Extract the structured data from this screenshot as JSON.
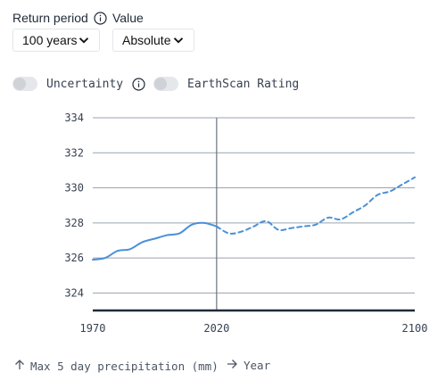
{
  "controls": {
    "return_period": {
      "label": "Return period",
      "value": "100 years"
    },
    "value": {
      "label": "Value",
      "value": "Absolute"
    }
  },
  "toggles": {
    "uncertainty": {
      "label": "Uncertainty",
      "on": false
    },
    "earthscan": {
      "label": "EarthScan Rating",
      "on": false
    }
  },
  "footer": {
    "y_axis": "Max 5 day precipitation (mm)",
    "x_axis": "Year"
  },
  "colors": {
    "line": "#4a90d9",
    "grid": "#9aa3ad",
    "axis": "#1f2a37",
    "ref_line": "#6b7280"
  },
  "chart_data": {
    "type": "line",
    "xlabel": "Year",
    "ylabel": "Max 5 day precipitation (mm)",
    "xlim": [
      1970,
      2100
    ],
    "ylim": [
      323,
      334
    ],
    "yticks": [
      324,
      326,
      328,
      330,
      332,
      334
    ],
    "xticks": [
      1970,
      2020,
      2100
    ],
    "reference_year": 2020,
    "series": [
      {
        "style": "solid",
        "x": [
          1970,
          1975,
          1980,
          1985,
          1990,
          1995,
          2000,
          2005,
          2010,
          2015,
          2020
        ],
        "y": [
          325.9,
          326.0,
          326.4,
          326.5,
          326.9,
          327.1,
          327.3,
          327.4,
          327.9,
          328.0,
          327.8
        ]
      },
      {
        "style": "dashed",
        "x": [
          2020,
          2025,
          2030,
          2035,
          2040,
          2045,
          2050,
          2055,
          2060,
          2065,
          2070,
          2075,
          2080,
          2085,
          2090,
          2095,
          2100
        ],
        "y": [
          327.8,
          327.4,
          327.5,
          327.8,
          328.1,
          327.6,
          327.7,
          327.8,
          327.9,
          328.3,
          328.2,
          328.6,
          329.0,
          329.6,
          329.8,
          330.2,
          330.6
        ]
      }
    ]
  }
}
